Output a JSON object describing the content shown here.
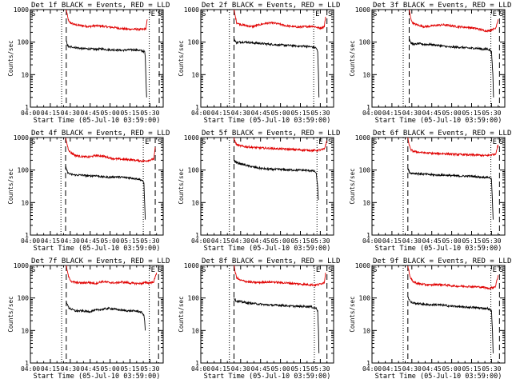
{
  "chart_data": {
    "type": "line",
    "figure": "RHESSI detector count rates",
    "xlabel": "Start Time (05-Jul-10 03:59:00)",
    "ylabel": "Counts/sec",
    "x_tick_labels": [
      "04:00",
      "04:15",
      "04:30",
      "04:45",
      "05:00",
      "05:15",
      "05:30"
    ],
    "x_ticks_min": [
      1,
      16,
      31,
      46,
      61,
      76,
      91
    ],
    "xlim_min": [
      1,
      101
    ],
    "ylim": [
      1,
      1000
    ],
    "y_scale": "log",
    "y_tick_labels": [
      "1",
      "10",
      "100",
      "1000"
    ],
    "y_tick_values": [
      1,
      10,
      100,
      1000
    ],
    "series_names": [
      "Events",
      "LLD"
    ],
    "series_colors": {
      "Events": "#000000",
      "LLD": "#e00000"
    },
    "panels": [
      {
        "title": "Det 1f BLACK = Events, RED = LLD",
        "edge_left": "S",
        "edge_right": "S",
        "edge_mid": "E",
        "dotted_lines_min": [
          24.5,
          90.5
        ],
        "dashed_lines_min": [
          28,
          98
        ],
        "data_start_min": 28,
        "data_end_min": 89,
        "series": [
          {
            "name": "LLD",
            "x": [
              28,
              29,
              30,
              32,
              35,
              40,
              45,
              50,
              55,
              60,
              65,
              70,
              75,
              80,
              85,
              88,
              89
            ],
            "y": [
              1000,
              600,
              420,
              380,
              340,
              320,
              300,
              320,
              310,
              290,
              280,
              260,
              250,
              250,
              245,
              260,
              500
            ]
          },
          {
            "name": "Events",
            "x": [
              28,
              29,
              30,
              32,
              35,
              40,
              45,
              50,
              55,
              60,
              65,
              70,
              75,
              80,
              84,
              86,
              87,
              87.5,
              88,
              88.5
            ],
            "y": [
              110,
              80,
              70,
              72,
              68,
              63,
              62,
              60,
              62,
              58,
              58,
              56,
              58,
              58,
              55,
              52,
              52,
              35,
              8,
              2
            ]
          }
        ]
      },
      {
        "title": "Det 2f BLACK = Events, RED = LLD",
        "edge_left": "S",
        "edge_right": "S",
        "edge_mid": "E",
        "dotted_lines_min": [
          22.5,
          86
        ],
        "dashed_lines_min": [
          26,
          96
        ],
        "data_start_min": 26,
        "data_end_min": 95,
        "series": [
          {
            "name": "LLD",
            "x": [
              26,
              27,
              28,
              30,
              35,
              40,
              45,
              50,
              55,
              60,
              65,
              70,
              75,
              80,
              85,
              88,
              90,
              92,
              94,
              95
            ],
            "y": [
              1000,
              600,
              400,
              360,
              320,
              300,
              340,
              380,
              390,
              360,
              320,
              300,
              290,
              300,
              310,
              290,
              270,
              280,
              300,
              600
            ]
          },
          {
            "name": "Events",
            "x": [
              26,
              27,
              28,
              30,
              35,
              40,
              45,
              50,
              55,
              60,
              65,
              70,
              75,
              80,
              83,
              86,
              88,
              89,
              89.6,
              90
            ],
            "y": [
              130,
              105,
              95,
              100,
              100,
              95,
              92,
              88,
              85,
              82,
              80,
              78,
              75,
              75,
              72,
              70,
              65,
              50,
              10,
              2
            ]
          }
        ]
      },
      {
        "title": "Det 3f BLACK = Events, RED = LLD",
        "edge_left": "S",
        "edge_right": "S",
        "edge_mid": "E",
        "dotted_lines_min": [
          24.5,
          90.5
        ],
        "dashed_lines_min": [
          29,
          97
        ],
        "data_start_min": 29,
        "data_end_min": 96,
        "series": [
          {
            "name": "LLD",
            "x": [
              29,
              30,
              31,
              33,
              36,
              40,
              45,
              50,
              55,
              60,
              65,
              70,
              75,
              80,
              85,
              88,
              90,
              92,
              94,
              96
            ],
            "y": [
              1000,
              600,
              420,
              360,
              330,
              300,
              310,
              330,
              340,
              320,
              300,
              290,
              280,
              260,
              230,
              220,
              230,
              250,
              260,
              500
            ]
          },
          {
            "name": "Events",
            "x": [
              29,
              30,
              31,
              33,
              36,
              40,
              45,
              50,
              55,
              60,
              65,
              70,
              75,
              80,
              85,
              88,
              90,
              91,
              92,
              92.5
            ],
            "y": [
              130,
              100,
              90,
              85,
              90,
              85,
              85,
              80,
              75,
              70,
              70,
              68,
              65,
              65,
              60,
              62,
              55,
              50,
              10,
              2
            ]
          }
        ]
      },
      {
        "title": "Det 4f BLACK = Events, RED = LLD",
        "edge_left": "S",
        "edge_right": "S",
        "edge_mid": "E",
        "dotted_lines_min": [
          24,
          86
        ],
        "dashed_lines_min": [
          27.5,
          95
        ],
        "data_start_min": 27.5,
        "data_end_min": 95,
        "series": [
          {
            "name": "LLD",
            "x": [
              27.5,
              28.5,
              29.5,
              31,
              35,
              40,
              45,
              50,
              55,
              60,
              65,
              70,
              75,
              80,
              85,
              88,
              90,
              92,
              94,
              95
            ],
            "y": [
              1000,
              650,
              450,
              350,
              280,
              260,
              250,
              280,
              270,
              240,
              220,
              215,
              210,
              200,
              190,
              190,
              200,
              210,
              220,
              500
            ]
          },
          {
            "name": "Events",
            "x": [
              27.5,
              28.5,
              29.5,
              31,
              35,
              40,
              45,
              50,
              55,
              60,
              65,
              70,
              75,
              80,
              83,
              85,
              86.5,
              87,
              87.5
            ],
            "y": [
              130,
              95,
              80,
              75,
              70,
              70,
              65,
              68,
              62,
              60,
              62,
              60,
              58,
              55,
              52,
              48,
              40,
              10,
              3
            ]
          }
        ]
      },
      {
        "title": "Det 5f BLACK = Events, RED = LLD",
        "edge_left": "S",
        "edge_right": "S",
        "edge_mid": "E",
        "dotted_lines_min": [
          22.5,
          88.5
        ],
        "dashed_lines_min": [
          26,
          96
        ],
        "data_start_min": 26,
        "data_end_min": 96,
        "series": [
          {
            "name": "LLD",
            "x": [
              26,
              27,
              28,
              30,
              35,
              40,
              45,
              50,
              55,
              60,
              65,
              70,
              75,
              80,
              85,
              88,
              90,
              92,
              94,
              96
            ],
            "y": [
              1000,
              700,
              600,
              560,
              520,
              500,
              480,
              470,
              460,
              450,
              440,
              430,
              420,
              410,
              400,
              400,
              410,
              420,
              440,
              800
            ]
          },
          {
            "name": "Events",
            "x": [
              26,
              27,
              28,
              30,
              35,
              40,
              45,
              50,
              55,
              60,
              65,
              70,
              75,
              80,
              85,
              87,
              88,
              89,
              89.5
            ],
            "y": [
              200,
              180,
              170,
              160,
              140,
              125,
              115,
              108,
              105,
              105,
              102,
              100,
              100,
              98,
              95,
              90,
              75,
              30,
              12
            ]
          }
        ]
      },
      {
        "title": "Det 6f BLACK = Events, RED = LLD",
        "edge_left": "S",
        "edge_right": "S",
        "edge_mid": "E",
        "dotted_lines_min": [
          24.5,
          90.5
        ],
        "dashed_lines_min": [
          28,
          97
        ],
        "data_start_min": 28,
        "data_end_min": 96,
        "series": [
          {
            "name": "LLD",
            "x": [
              28,
              29,
              30,
              32,
              35,
              40,
              45,
              50,
              55,
              60,
              65,
              70,
              75,
              80,
              85,
              88,
              90,
              92,
              94,
              96
            ],
            "y": [
              1000,
              600,
              430,
              380,
              360,
              340,
              330,
              320,
              320,
              310,
              300,
              300,
              290,
              290,
              280,
              280,
              290,
              300,
              310,
              600
            ]
          },
          {
            "name": "Events",
            "x": [
              28,
              29,
              30,
              32,
              35,
              40,
              45,
              50,
              55,
              60,
              65,
              70,
              75,
              80,
              85,
              88,
              90,
              91,
              91.7,
              92.2
            ],
            "y": [
              110,
              90,
              80,
              80,
              78,
              75,
              72,
              70,
              70,
              68,
              66,
              65,
              65,
              62,
              60,
              60,
              58,
              50,
              10,
              3
            ]
          }
        ]
      },
      {
        "title": "Det 7f BLACK = Events, RED = LLD",
        "edge_left": "S",
        "edge_right": "S",
        "edge_mid": "E",
        "dotted_lines_min": [
          24.5,
          90.5
        ],
        "dashed_lines_min": [
          28,
          97.5
        ],
        "data_start_min": 28,
        "data_end_min": 96,
        "series": [
          {
            "name": "LLD",
            "x": [
              28,
              29,
              30,
              32,
              35,
              40,
              45,
              50,
              55,
              60,
              65,
              70,
              75,
              80,
              85,
              88,
              90,
              92,
              94,
              96
            ],
            "y": [
              1000,
              600,
              420,
              320,
              300,
              290,
              300,
              280,
              320,
              300,
              290,
              310,
              290,
              280,
              280,
              300,
              290,
              300,
              320,
              600
            ]
          },
          {
            "name": "Events",
            "x": [
              28,
              29,
              30,
              32,
              35,
              40,
              45,
              50,
              55,
              60,
              65,
              70,
              75,
              80,
              83,
              85,
              86.5,
              87,
              87.5
            ],
            "y": [
              80,
              60,
              50,
              45,
              40,
              40,
              38,
              42,
              45,
              48,
              45,
              42,
              40,
              40,
              38,
              35,
              30,
              20,
              10
            ]
          }
        ]
      },
      {
        "title": "Det 8f BLACK = Events, RED = LLD",
        "edge_left": "S",
        "edge_right": "S",
        "edge_mid": "E",
        "dotted_lines_min": [
          22.5,
          86.5
        ],
        "dashed_lines_min": [
          26,
          96
        ],
        "data_start_min": 26,
        "data_end_min": 95,
        "series": [
          {
            "name": "LLD",
            "x": [
              26,
              27,
              28,
              30,
              35,
              40,
              45,
              50,
              55,
              60,
              65,
              70,
              75,
              80,
              85,
              88,
              90,
              92,
              94,
              95
            ],
            "y": [
              1000,
              600,
              430,
              360,
              320,
              300,
              300,
              310,
              310,
              300,
              290,
              280,
              270,
              260,
              255,
              250,
              260,
              280,
              300,
              600
            ]
          },
          {
            "name": "Events",
            "x": [
              26,
              27,
              28,
              30,
              35,
              40,
              45,
              50,
              55,
              60,
              65,
              70,
              75,
              80,
              83,
              85,
              88,
              89,
              89.6,
              90
            ],
            "y": [
              100,
              85,
              80,
              78,
              72,
              68,
              65,
              62,
              60,
              60,
              58,
              56,
              55,
              55,
              55,
              52,
              48,
              40,
              10,
              2
            ]
          }
        ]
      },
      {
        "title": "Det 9f BLACK = Events, RED = LLD",
        "edge_left": "S",
        "edge_right": "S",
        "edge_mid": "E",
        "dotted_lines_min": [
          24.5,
          90.5
        ],
        "dashed_lines_min": [
          28,
          97
        ],
        "data_start_min": 28,
        "data_end_min": 96,
        "series": [
          {
            "name": "LLD",
            "x": [
              28,
              29,
              30,
              32,
              35,
              40,
              45,
              50,
              55,
              60,
              65,
              70,
              75,
              80,
              85,
              88,
              90,
              92,
              94,
              96
            ],
            "y": [
              1000,
              600,
              400,
              320,
              280,
              260,
              250,
              260,
              255,
              240,
              230,
              230,
              225,
              220,
              215,
              200,
              200,
              210,
              230,
              500
            ]
          },
          {
            "name": "Events",
            "x": [
              28,
              29,
              30,
              32,
              35,
              40,
              45,
              50,
              55,
              60,
              65,
              70,
              75,
              80,
              85,
              88,
              90,
              91,
              91.7,
              92.2
            ],
            "y": [
              110,
              90,
              75,
              70,
              68,
              64,
              62,
              62,
              60,
              56,
              55,
              52,
              52,
              50,
              48,
              48,
              42,
              40,
              10,
              2
            ]
          }
        ]
      }
    ]
  }
}
